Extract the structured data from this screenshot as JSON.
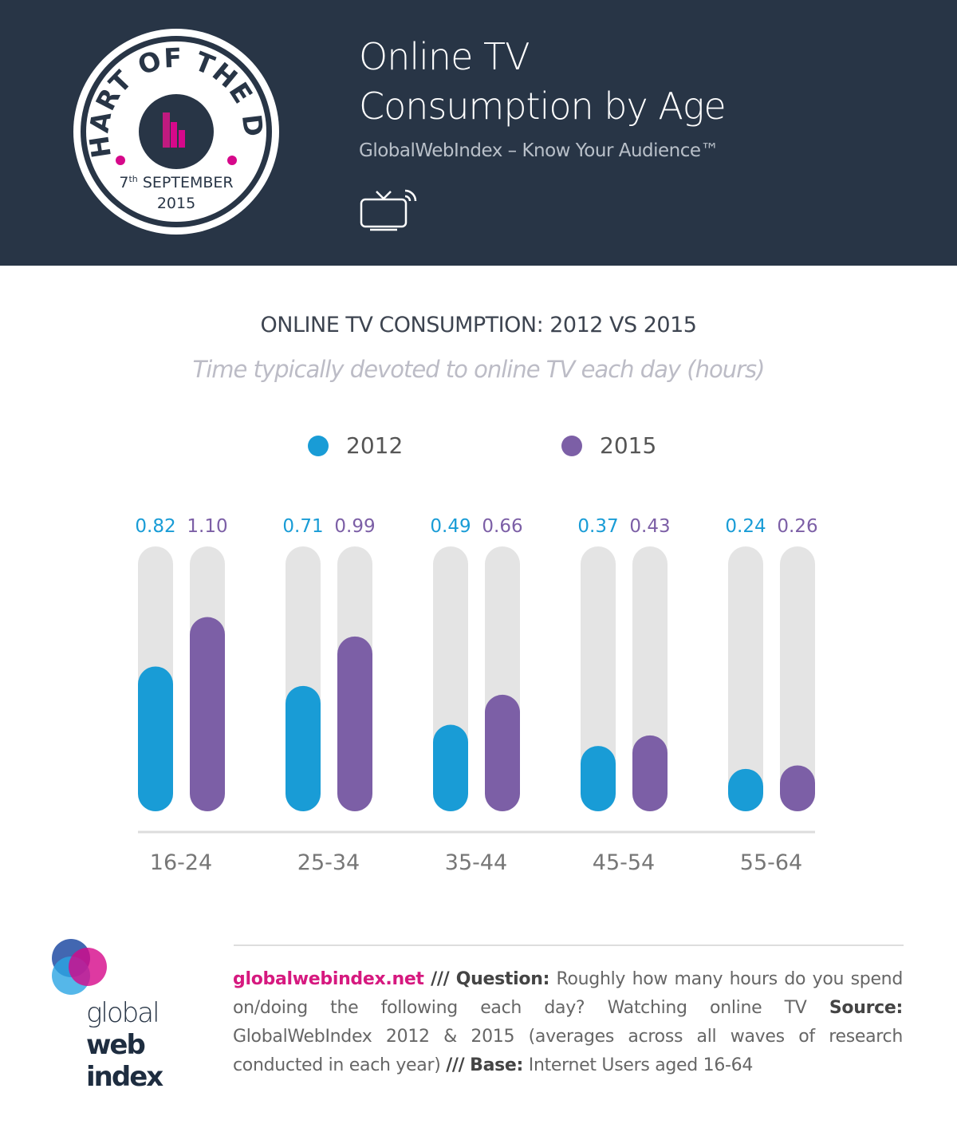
{
  "header": {
    "badge": {
      "top_text": "CHART OF THE DAY",
      "day": "7",
      "day_suffix": "th",
      "month": "SEPTEMBER",
      "year": "2015"
    },
    "title_line1": "Online TV",
    "title_line2": "Consumption by Age",
    "subtitle": "GlobalWebIndex – Know Your Audience™",
    "icon": "tv-broadcast-icon"
  },
  "chart_data": {
    "type": "bar",
    "title": "ONLINE TV CONSUMPTION: 2012 VS 2015",
    "subtitle": "Time typically devoted to online TV each day (hours)",
    "categories": [
      "16-24",
      "25-34",
      "35-44",
      "45-54",
      "55-64"
    ],
    "series": [
      {
        "name": "2012",
        "color": "#199cd6",
        "values": [
          0.82,
          0.71,
          0.49,
          0.37,
          0.24
        ]
      },
      {
        "name": "2015",
        "color": "#7c5fa6",
        "values": [
          1.1,
          0.99,
          0.66,
          0.43,
          0.26
        ]
      }
    ],
    "ylim": [
      0,
      1.5
    ],
    "track_color": "#e4e4e4",
    "legend": "top-center",
    "grid": false
  },
  "footer": {
    "site": "globalwebindex.net",
    "sep": "///",
    "question_label": "Question:",
    "question": "Roughly how many hours do you spend on/doing the following each day? Watching online TV",
    "source_label": "Source:",
    "source": "GlobalWebIndex 2012 & 2015 (averages across all waves of research conducted in each year)",
    "base_label": "Base:",
    "base": "Internet Users aged 16-64",
    "logo": {
      "line1": "global",
      "line2": "web",
      "line3": "index"
    }
  }
}
